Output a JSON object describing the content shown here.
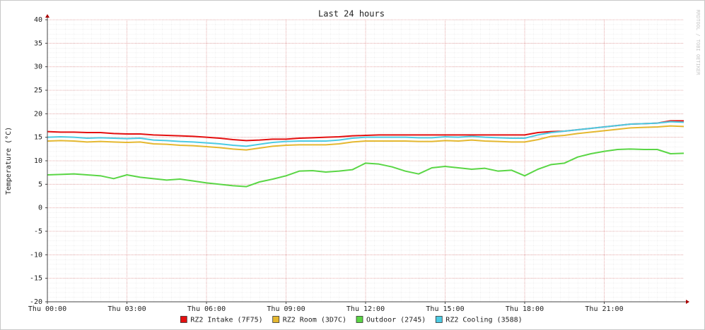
{
  "chart_data": {
    "type": "line",
    "title": "Last 24 hours",
    "y_label": "Temperature (°C)",
    "watermark": "RRDTOOL / TOBI OETIKER",
    "xlim": [
      0,
      24
    ],
    "ylim": [
      -20,
      40
    ],
    "yticks": [
      -20,
      -15,
      -10,
      -5,
      0,
      5,
      10,
      15,
      20,
      25,
      30,
      35,
      40
    ],
    "xticks": [
      {
        "value": 0,
        "label": "Thu 00:00"
      },
      {
        "value": 3,
        "label": "Thu 03:00"
      },
      {
        "value": 6,
        "label": "Thu 06:00"
      },
      {
        "value": 9,
        "label": "Thu 09:00"
      },
      {
        "value": 12,
        "label": "Thu 12:00"
      },
      {
        "value": 15,
        "label": "Thu 15:00"
      },
      {
        "value": 18,
        "label": "Thu 18:00"
      },
      {
        "value": 21,
        "label": "Thu 21:00"
      }
    ],
    "grid": true,
    "legend": "bottom",
    "x": [
      0,
      0.5,
      1,
      1.5,
      2,
      2.5,
      3,
      3.5,
      4,
      4.5,
      5,
      5.5,
      6,
      6.5,
      7,
      7.5,
      8,
      8.5,
      9,
      9.5,
      10,
      10.5,
      11,
      11.5,
      12,
      12.5,
      13,
      13.5,
      14,
      14.5,
      15,
      15.5,
      16,
      16.5,
      17,
      17.5,
      18,
      18.5,
      19,
      19.5,
      20,
      20.5,
      21,
      21.5,
      22,
      22.5,
      23,
      23.5,
      24
    ],
    "series": [
      {
        "name": "RZ2 Intake (7F75)",
        "color": "#e41010",
        "values": [
          16.2,
          16.1,
          16.1,
          16.0,
          16.0,
          15.8,
          15.7,
          15.7,
          15.5,
          15.4,
          15.3,
          15.2,
          15.0,
          14.8,
          14.5,
          14.3,
          14.4,
          14.6,
          14.6,
          14.8,
          14.9,
          15.0,
          15.1,
          15.3,
          15.4,
          15.5,
          15.5,
          15.5,
          15.5,
          15.5,
          15.5,
          15.5,
          15.5,
          15.5,
          15.5,
          15.5,
          15.5,
          16.0,
          16.2,
          16.3,
          16.6,
          16.9,
          17.2,
          17.5,
          17.8,
          17.9,
          18.0,
          18.5,
          18.5
        ]
      },
      {
        "name": "RZ2 Room (3D7C)",
        "color": "#e5b830",
        "values": [
          14.2,
          14.3,
          14.2,
          14.0,
          14.1,
          14.0,
          13.9,
          14.0,
          13.6,
          13.5,
          13.3,
          13.2,
          13.0,
          12.8,
          12.5,
          12.3,
          12.7,
          13.1,
          13.3,
          13.4,
          13.4,
          13.4,
          13.6,
          14.0,
          14.2,
          14.2,
          14.2,
          14.2,
          14.1,
          14.1,
          14.3,
          14.2,
          14.4,
          14.2,
          14.1,
          14.0,
          14.0,
          14.5,
          15.2,
          15.4,
          15.8,
          16.1,
          16.4,
          16.7,
          17.0,
          17.1,
          17.2,
          17.4,
          17.3
        ]
      },
      {
        "name": "Outdoor (2745)",
        "color": "#5ad645",
        "values": [
          7.0,
          7.1,
          7.2,
          7.0,
          6.8,
          6.2,
          7.0,
          6.5,
          6.2,
          5.9,
          6.1,
          5.7,
          5.3,
          5.0,
          4.7,
          4.5,
          5.5,
          6.1,
          6.8,
          7.8,
          7.9,
          7.6,
          7.8,
          8.1,
          9.5,
          9.3,
          8.7,
          7.8,
          7.2,
          8.5,
          8.8,
          8.5,
          8.2,
          8.4,
          7.8,
          8.0,
          6.8,
          8.2,
          9.2,
          9.5,
          10.8,
          11.5,
          12.0,
          12.4,
          12.5,
          12.4,
          12.4,
          11.5,
          11.6
        ]
      },
      {
        "name": "RZ2 Cooling (3588)",
        "color": "#4ccbe3",
        "values": [
          15.0,
          15.1,
          15.0,
          14.8,
          14.9,
          14.8,
          14.7,
          14.8,
          14.4,
          14.3,
          14.1,
          14.0,
          13.8,
          13.6,
          13.3,
          13.1,
          13.5,
          13.9,
          14.1,
          14.2,
          14.2,
          14.2,
          14.4,
          14.8,
          15.0,
          15.0,
          15.0,
          15.0,
          14.9,
          14.9,
          15.1,
          15.0,
          15.2,
          15.0,
          14.9,
          14.8,
          14.8,
          15.5,
          16.0,
          16.3,
          16.6,
          16.9,
          17.2,
          17.5,
          17.8,
          17.9,
          18.0,
          18.3,
          18.2
        ]
      }
    ]
  }
}
